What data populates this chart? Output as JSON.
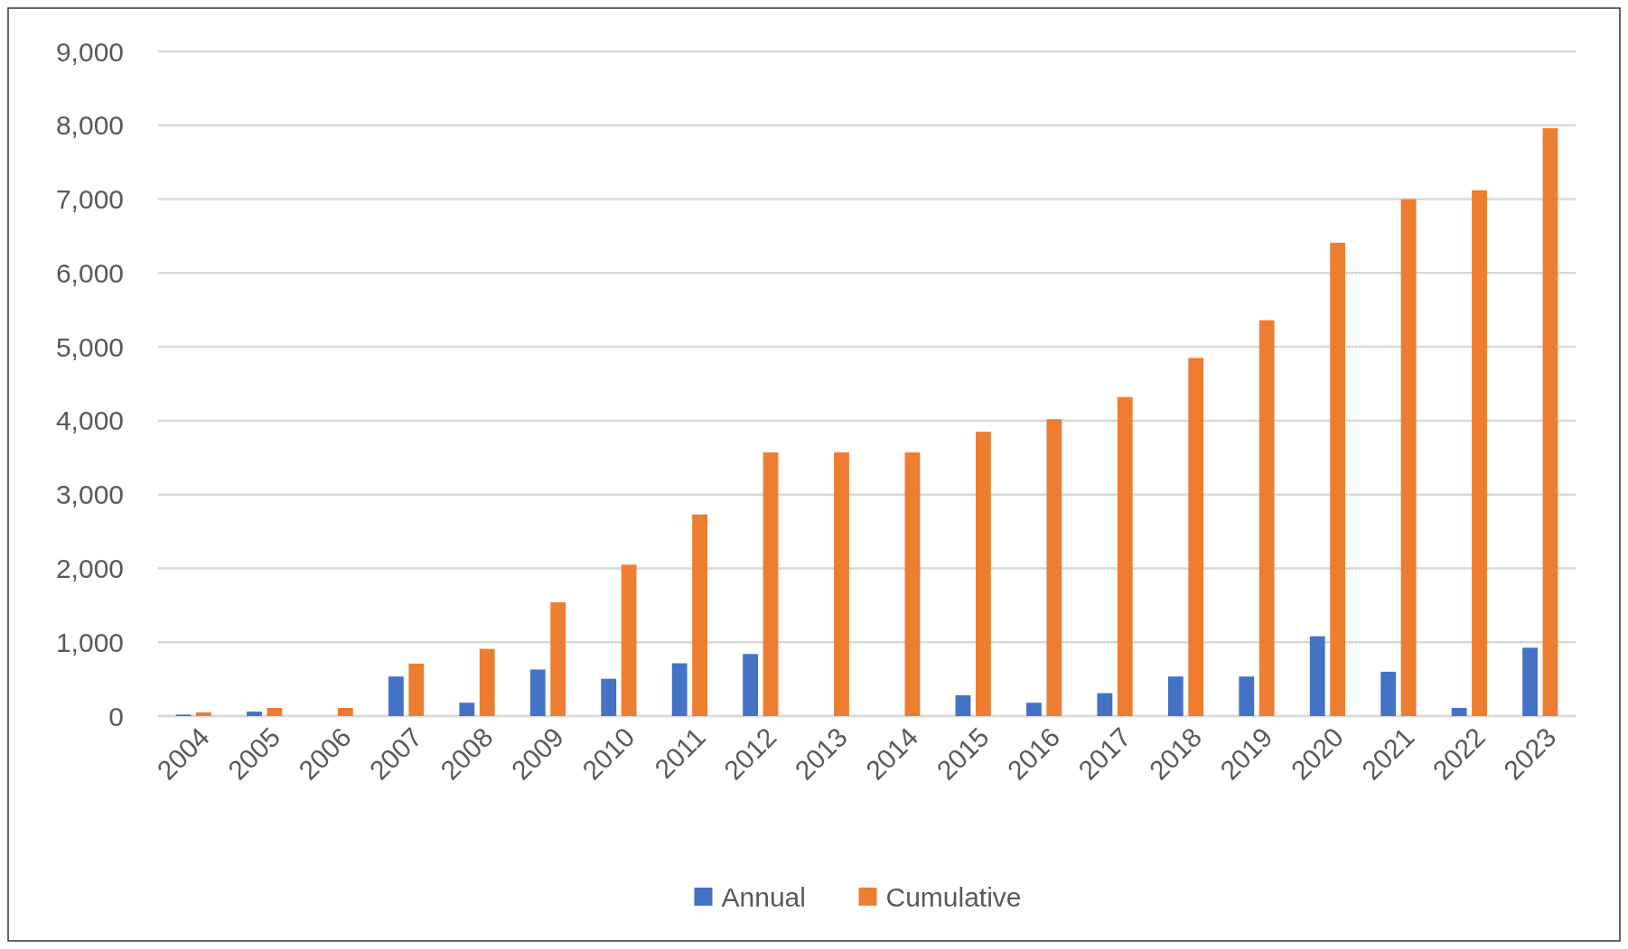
{
  "chart_data": {
    "type": "bar",
    "categories": [
      "2004",
      "2005",
      "2006",
      "2007",
      "2008",
      "2009",
      "2010",
      "2011",
      "2012",
      "2013",
      "2014",
      "2015",
      "2016",
      "2017",
      "2018",
      "2019",
      "2020",
      "2021",
      "2022",
      "2023"
    ],
    "series": [
      {
        "name": "Annual",
        "color": "#4472c4",
        "values": [
          20,
          60,
          0,
          535,
          180,
          630,
          505,
          715,
          840,
          0,
          0,
          280,
          180,
          310,
          535,
          535,
          1080,
          600,
          110,
          925
        ]
      },
      {
        "name": "Cumulative",
        "color": "#ed7d31",
        "values": [
          50,
          110,
          110,
          710,
          910,
          1540,
          2050,
          2730,
          3570,
          3570,
          3570,
          3850,
          4020,
          4320,
          4850,
          5360,
          6410,
          7000,
          7120,
          7960
        ]
      }
    ],
    "ylim": [
      0,
      9000
    ],
    "yticks": [
      {
        "value": 0,
        "label": "0"
      },
      {
        "value": 1000,
        "label": "1,000"
      },
      {
        "value": 2000,
        "label": "2,000"
      },
      {
        "value": 3000,
        "label": "3,000"
      },
      {
        "value": 4000,
        "label": "4,000"
      },
      {
        "value": 5000,
        "label": "5,000"
      },
      {
        "value": 6000,
        "label": "6,000"
      },
      {
        "value": 7000,
        "label": "7,000"
      },
      {
        "value": 8000,
        "label": "8,000"
      },
      {
        "value": 9000,
        "label": "9,000"
      }
    ],
    "grid": "y",
    "legend": "bottom"
  }
}
